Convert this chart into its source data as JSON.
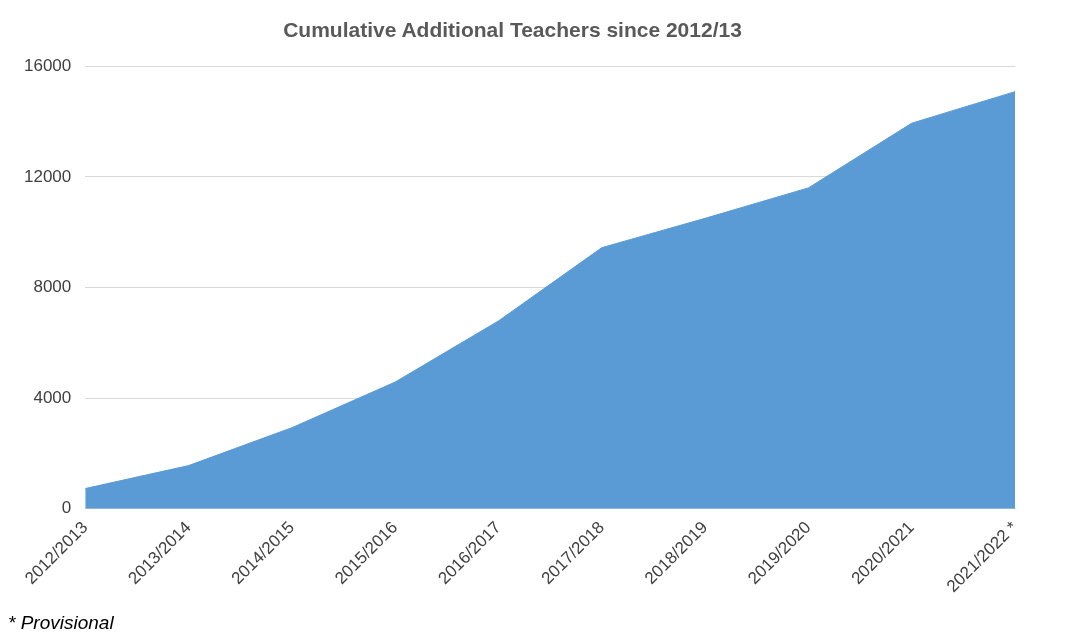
{
  "chart_data": {
    "type": "area",
    "title": "Cumulative Additional Teachers since 2012/13",
    "categories": [
      "2012/2013",
      "2013/2014",
      "2014/2015",
      "2015/2016",
      "2016/2017",
      "2017/2018",
      "2018/2019",
      "2019/2020",
      "2020/2021",
      "2021/2022 *"
    ],
    "series": [
      {
        "color": "#5b9bd5",
        "values": [
          730,
          1560,
          2930,
          4580,
          6790,
          9440,
          10500,
          11600,
          13940,
          15080
        ]
      }
    ],
    "ylim": [
      0,
      16000
    ],
    "yticks": [
      0,
      4000,
      8000,
      12000,
      16000
    ],
    "grid": "y",
    "legend": false,
    "annotations": [
      "* Provisional"
    ]
  }
}
